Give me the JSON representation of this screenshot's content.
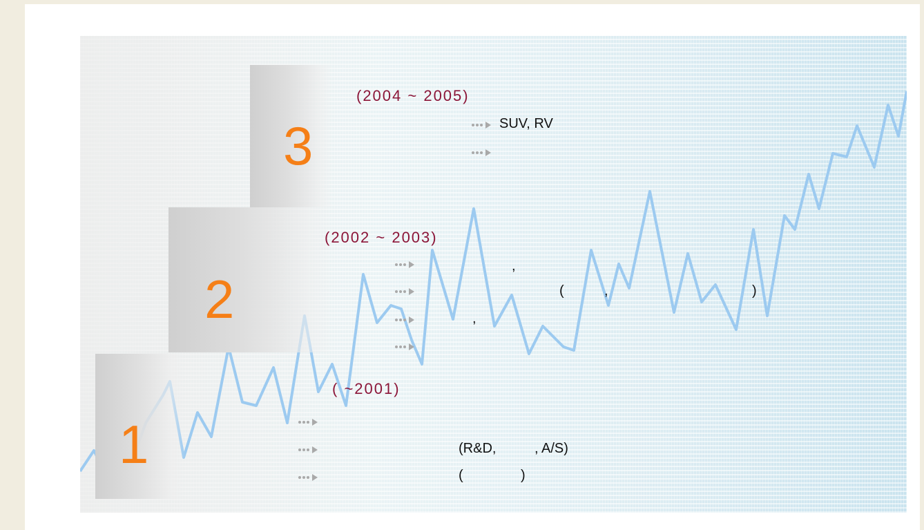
{
  "stages": [
    {
      "number": "3",
      "period": "(2004 ~ 2005)"
    },
    {
      "number": "2",
      "period": "(2002 ~ 2003)"
    },
    {
      "number": "1",
      "period": "( ~2001)"
    }
  ],
  "texts": {
    "suv_rv": "SUV, RV",
    "comma1": ",",
    "comma2": ",",
    "paren_open": "(",
    "comma3": ",",
    "paren_close": ")",
    "rd_as": "(R&D,          , A/S)",
    "paren_pair": "(               )"
  },
  "colors": {
    "step_number": "#f57f17",
    "period": "#8b1538",
    "trend_line": "#9ccaf0",
    "bullet": "#a9a9a9"
  },
  "icons": {
    "bullet": "dotted-arrow-icon"
  }
}
